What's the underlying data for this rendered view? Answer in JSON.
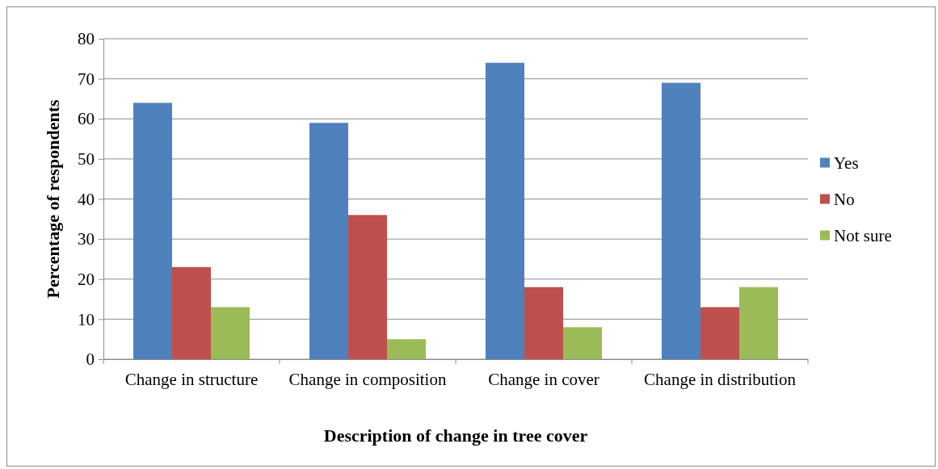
{
  "chart_data": {
    "type": "bar",
    "xlabel": "Description of change in tree cover",
    "ylabel": "Percentage of respondents",
    "categories": [
      "Change in structure",
      "Change in composition",
      "Change in cover",
      "Change in distribution"
    ],
    "series": [
      {
        "name": "Yes",
        "color": "#4f81bd",
        "values": [
          64,
          59,
          74,
          69
        ]
      },
      {
        "name": "No",
        "color": "#c0504d",
        "values": [
          23,
          36,
          18,
          13
        ]
      },
      {
        "name": "Not sure",
        "color": "#9bbb59",
        "values": [
          13,
          5,
          8,
          18
        ]
      }
    ],
    "ylim": [
      0,
      80
    ],
    "yticks": [
      0,
      10,
      20,
      30,
      40,
      50,
      60,
      70,
      80
    ],
    "grid": "y",
    "legend": "right"
  }
}
